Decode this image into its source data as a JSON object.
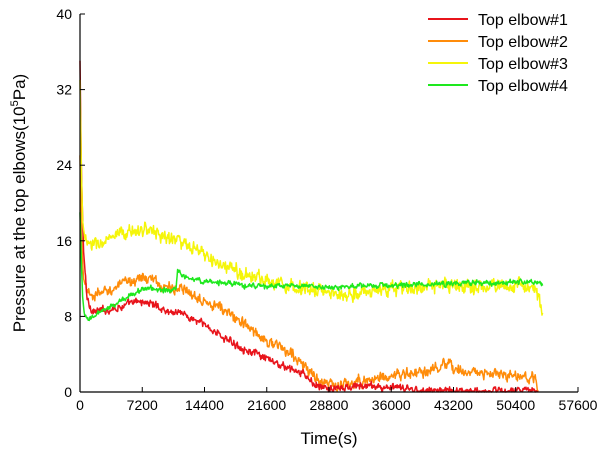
{
  "chart_data": {
    "type": "line",
    "xlabel": "Time(s)",
    "ylabel": "Pressure at the top elbows(10",
    "ylabel_sup": "5",
    "ylabel_end": "Pa)",
    "xlim": [
      0,
      57600
    ],
    "ylim": [
      0,
      40
    ],
    "xticks": [
      0,
      7200,
      14400,
      21600,
      28800,
      36000,
      43200,
      50400,
      57600
    ],
    "yticks": [
      0,
      8,
      16,
      24,
      32,
      40
    ],
    "legend_position": "top-right",
    "grid": false,
    "series": [
      {
        "name": "Top elbow#1",
        "color": "#e8141b",
        "noise": 0.45,
        "x": [
          0,
          150,
          400,
          800,
          1200,
          1800,
          3000,
          5000,
          7000,
          8500,
          9500,
          10500,
          11500,
          12500,
          14000,
          15500,
          17000,
          19000,
          21000,
          22500,
          23800,
          25000,
          26000,
          27000,
          28000,
          30000,
          33000,
          36000,
          40000,
          44000,
          47000,
          50000,
          52000,
          53000
        ],
        "y": [
          35,
          24,
          15,
          10,
          8.9,
          8.5,
          8.7,
          9.1,
          9.6,
          9.3,
          8.8,
          8.4,
          8.6,
          7.9,
          7.3,
          6.5,
          5.5,
          4.6,
          3.7,
          3.1,
          2.6,
          2.2,
          1.8,
          0.9,
          0.4,
          0.3,
          0.7,
          0.4,
          0.2,
          0.1,
          0.1,
          0.1,
          0.1,
          0.1
        ]
      },
      {
        "name": "Top elbow#2",
        "color": "#ff8c0a",
        "noise": 0.65,
        "x": [
          0,
          150,
          400,
          800,
          1200,
          1800,
          3000,
          5000,
          7000,
          8500,
          9500,
          11000,
          12500,
          14000,
          16000,
          18000,
          20000,
          22000,
          23500,
          24500,
          25500,
          26500,
          27500,
          28500,
          30000,
          32000,
          35000,
          38000,
          40000,
          42000,
          44000,
          46000,
          48000,
          50000,
          51500,
          52500,
          53000
        ],
        "y": [
          25,
          17,
          12,
          10.5,
          10.3,
          10.2,
          10.7,
          11.4,
          12.2,
          11.8,
          11.2,
          11.0,
          10.5,
          10.0,
          9.0,
          7.8,
          6.5,
          5.3,
          4.5,
          4.0,
          3.2,
          2.2,
          1.3,
          0.8,
          0.6,
          1.1,
          1.6,
          1.9,
          2.1,
          2.7,
          2.4,
          2.0,
          1.8,
          1.7,
          1.6,
          1.2,
          0.8
        ]
      },
      {
        "name": "Top elbow#3",
        "color": "#f5f50a",
        "noise": 0.8,
        "x": [
          0,
          150,
          300,
          600,
          1000,
          1500,
          2500,
          4000,
          5500,
          7000,
          8500,
          10000,
          11000,
          11500,
          12500,
          14000,
          16000,
          18000,
          20000,
          22000,
          24000,
          26000,
          28000,
          30000,
          33000,
          36000,
          40000,
          44000,
          48000,
          51000,
          52500,
          53200,
          53500
        ],
        "y": [
          33,
          24,
          18,
          16,
          15.7,
          15.5,
          15.8,
          16.3,
          16.8,
          17.3,
          17.0,
          16.4,
          16.2,
          16.0,
          15.3,
          14.7,
          13.5,
          12.8,
          12.2,
          11.8,
          11.3,
          11.0,
          10.6,
          10.3,
          10.6,
          10.9,
          11.1,
          11.2,
          11.2,
          11.3,
          11.0,
          9.5,
          7.8
        ]
      },
      {
        "name": "Top elbow#4",
        "color": "#1ee81e",
        "noise": 0.3,
        "x": [
          0,
          150,
          300,
          500,
          800,
          1200,
          2000,
          3000,
          4500,
          6000,
          7500,
          9000,
          10500,
          11100,
          11300,
          11600,
          12200,
          13000,
          14500,
          16000,
          18000,
          20000,
          22000,
          24000,
          26000,
          28000,
          30000,
          33000,
          36000,
          40000,
          44000,
          48000,
          51000,
          53000,
          53500
        ],
        "y": [
          19,
          14,
          10,
          8.2,
          7.6,
          7.8,
          8.3,
          8.7,
          9.5,
          10.4,
          11.0,
          10.9,
          10.6,
          11.0,
          13.2,
          12.6,
          12.2,
          11.9,
          11.7,
          11.6,
          11.4,
          11.2,
          11.2,
          11.2,
          11.2,
          11.1,
          11.1,
          11.2,
          11.3,
          11.4,
          11.5,
          11.6,
          11.7,
          11.6,
          11.3
        ]
      }
    ]
  }
}
